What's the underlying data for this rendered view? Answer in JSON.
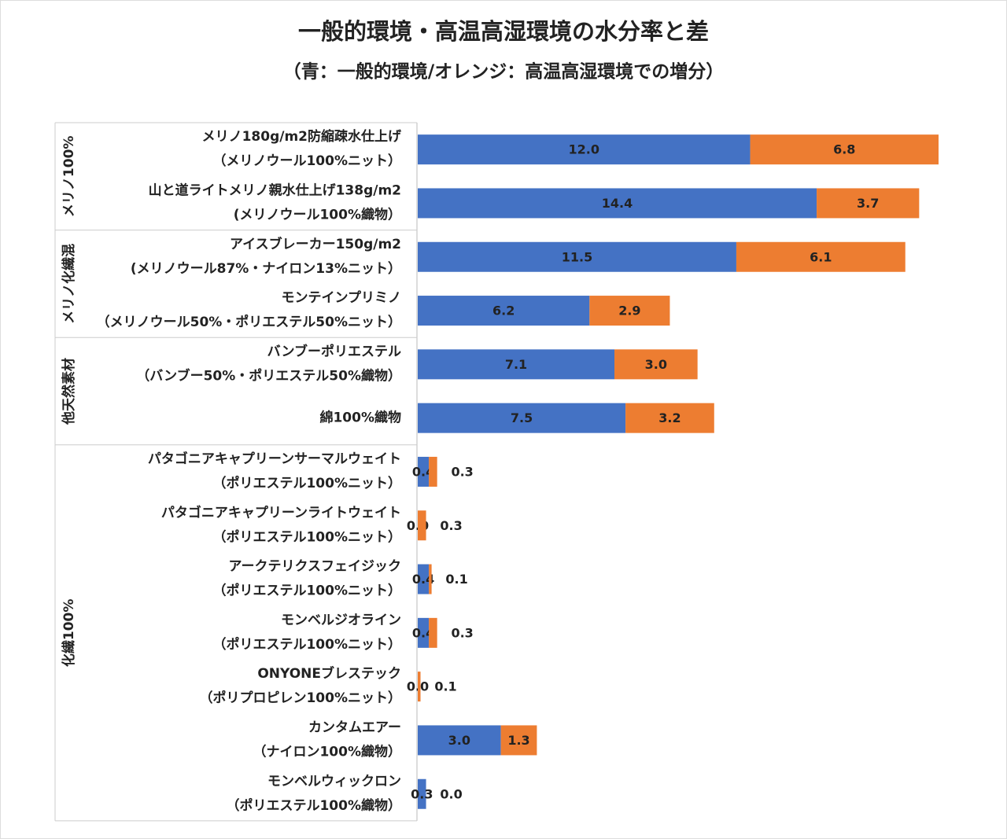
{
  "chart_data": {
    "type": "stacked-bar-horizontal",
    "title": "一般的環境・高温高湿環境の水分率と差",
    "subtitle": "（青：一般的環境/オレンジ：高温高湿環境での増分）",
    "groups": [
      {
        "name": "メリノ100%",
        "categories": [
          [
            "メリノ180g/m2防縮疎水仕上げ",
            "（メリノウール100%ニット）"
          ],
          [
            "山と道ライトメリノ親水仕上げ138g/m2",
            "(メリノウール100%織物）"
          ]
        ]
      },
      {
        "name": "メリノ化繊混",
        "categories": [
          [
            "アイスブレーカー150g/m2",
            "(メリノウール87%・ナイロン13%ニット）"
          ],
          [
            "モンテインプリミノ",
            "（メリノウール50%・ポリエステル50%ニット）"
          ]
        ]
      },
      {
        "name": "他天然素材",
        "categories": [
          [
            "バンブーポリエステル",
            "（バンブー50%・ポリエステル50%織物）"
          ],
          [
            "綿100%織物"
          ]
        ]
      },
      {
        "name": "化繊100%",
        "categories": [
          [
            "パタゴニアキャプリーンサーマルウェイト",
            "（ポリエステル100%ニット）"
          ],
          [
            "パタゴニアキャプリーンライトウェイト",
            "（ポリエステル100%ニット）"
          ],
          [
            "アークテリクスフェイジック",
            "（ポリエステル100%ニット）"
          ],
          [
            "モンベルジオライン",
            "（ポリエステル100%ニット）"
          ],
          [
            "ONYONEブレステック",
            "（ポリプロピレン100%ニット）"
          ],
          [
            "カンタムエアー",
            "（ナイロン100%織物）"
          ],
          [
            "モンベルウィックロン",
            "（ポリエステル100%織物）"
          ]
        ]
      }
    ],
    "series": [
      {
        "color": "#4472c4",
        "values": [
          12.0,
          14.4,
          11.5,
          6.2,
          7.1,
          7.5,
          0.4,
          0.0,
          0.4,
          0.4,
          0.0,
          3.0,
          0.3
        ],
        "value_labels": [
          "12.0",
          "14.4",
          "11.5",
          "6.2",
          "7.1",
          "7.5",
          "0.4",
          "0.0",
          "0.4",
          "0.4",
          "0.0",
          "3.0",
          "0.3"
        ]
      },
      {
        "color": "#ed7d31",
        "values": [
          6.8,
          3.7,
          6.1,
          2.9,
          3.0,
          3.2,
          0.3,
          0.3,
          0.1,
          0.3,
          0.1,
          1.3,
          0.0
        ],
        "value_labels": [
          "6.8",
          "3.7",
          "6.1",
          "2.9",
          "3.0",
          "3.2",
          "0.3",
          "0.3",
          "0.1",
          "0.3",
          "0.1",
          "1.3",
          "0.0"
        ]
      }
    ]
  }
}
